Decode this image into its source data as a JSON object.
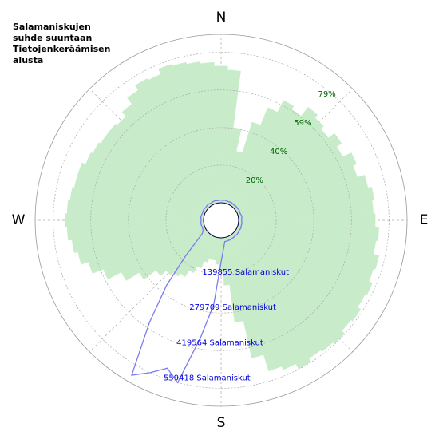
{
  "chart_data": {
    "type": "polar",
    "title_lines": [
      "Salamaniskujen",
      "suhde suuntaan",
      "Tietojenkeräämisen",
      "alusta"
    ],
    "direction_labels": [
      "N",
      "E",
      "S",
      "W"
    ],
    "x": [
      0,
      5,
      10,
      15,
      20,
      25,
      30,
      35,
      40,
      45,
      50,
      55,
      60,
      65,
      70,
      75,
      80,
      85,
      90,
      95,
      100,
      105,
      110,
      115,
      120,
      125,
      130,
      135,
      140,
      145,
      150,
      155,
      160,
      165,
      170,
      175,
      180,
      185,
      190,
      195,
      200,
      205,
      210,
      215,
      220,
      225,
      230,
      235,
      240,
      245,
      250,
      255,
      260,
      265,
      270,
      275,
      280,
      285,
      290,
      295,
      300,
      305,
      310,
      315,
      320,
      325,
      330,
      335,
      340,
      345,
      350,
      355
    ],
    "series": [
      {
        "kind": "bar",
        "color": "#c8ecca",
        "values": [
          72,
          70,
          40,
          28,
          45,
          55,
          62,
          60,
          66,
          64,
          62,
          66,
          63,
          68,
          66,
          70,
          72,
          71,
          72,
          74,
          73,
          76,
          75,
          77,
          76,
          78,
          77,
          79,
          78,
          77,
          79,
          76,
          74,
          65,
          45,
          25,
          18,
          14,
          12,
          12,
          14,
          18,
          22,
          26,
          28,
          30,
          34,
          42,
          50,
          58,
          64,
          68,
          70,
          72,
          73,
          72,
          71,
          70,
          70,
          68,
          67,
          66,
          66,
          65,
          68,
          72,
          75,
          74,
          77,
          76,
          75,
          74
        ]
      },
      {
        "kind": "line",
        "axis": "y2",
        "color": "#7b7bef",
        "values": [
          10000,
          9000,
          11000,
          10000,
          9000,
          10000,
          11000,
          10000,
          9000,
          10000,
          11000,
          10000,
          12000,
          11000,
          10000,
          12000,
          13000,
          12000,
          11000,
          12000,
          13000,
          12000,
          14000,
          13000,
          12000,
          13000,
          14000,
          13000,
          12000,
          14000,
          13000,
          15000,
          14000,
          15000,
          15000,
          40000,
          90000,
          250000,
          380000,
          560000,
          520000,
          560000,
          600000,
          400000,
          250000,
          120000,
          50000,
          20000,
          12000,
          10000,
          9000,
          10000,
          11000,
          10000,
          9000,
          10000,
          11000,
          10000,
          9000,
          10000,
          11000,
          10000,
          9000,
          10000,
          11000,
          10000,
          9000,
          10000,
          11000,
          10000,
          9000,
          10000
        ]
      }
    ],
    "ylim": [
      0,
      88.7
    ],
    "yticks": [
      {
        "value": 19.8,
        "label": "20%"
      },
      {
        "value": 39.6,
        "label": "40%"
      },
      {
        "value": 59.4,
        "label": "59%"
      },
      {
        "value": 79.2,
        "label": "79%"
      }
    ],
    "y2lim": [
      0,
      626530
    ],
    "y2ticks": [
      {
        "value": 139855,
        "label": "139855 Salamaniskut"
      },
      {
        "value": 279709,
        "label": "279709 Salamaniskut"
      },
      {
        "value": 419564,
        "label": "419564 Salamaniskut"
      },
      {
        "value": 559418,
        "label": "559418 Salamaniskut"
      }
    ],
    "grid": true
  }
}
